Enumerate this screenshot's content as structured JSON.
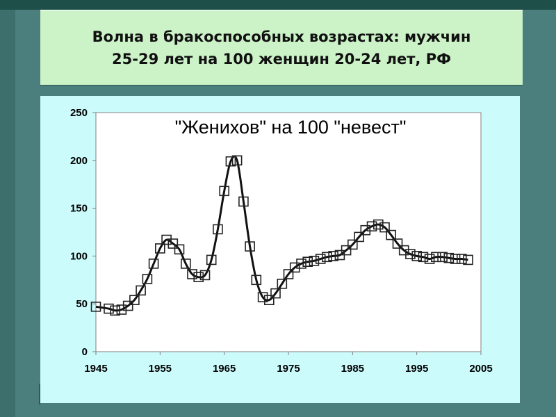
{
  "slide": {
    "title": "Волна в бракоспособных возрастах: мужчин\n25-29 лет на 100 женщин 20-24 лет, РФ"
  },
  "colors": {
    "background": "#4a7f7e",
    "title_box": "#ccf2c7",
    "chart_panel": "#ccfbfc",
    "plot_area": "#ffffff",
    "line": "#111111"
  },
  "chart_data": {
    "type": "line",
    "title": "\"Женихов\" на 100 \"невест\"",
    "xlabel": "",
    "ylabel": "",
    "xlim": [
      1945,
      2005
    ],
    "ylim": [
      0,
      250
    ],
    "x_ticks": [
      1945,
      1955,
      1965,
      1975,
      1985,
      1995,
      2005
    ],
    "y_ticks": [
      0,
      50,
      100,
      150,
      200,
      250
    ],
    "grid": false,
    "legend": "none",
    "marker": "square",
    "series": [
      {
        "x": [
          1945,
          1947,
          1948,
          1949,
          1950,
          1951,
          1952,
          1953,
          1954,
          1955,
          1956,
          1957,
          1958,
          1959,
          1960,
          1961,
          1962,
          1963,
          1964,
          1965,
          1966,
          1967,
          1968,
          1969,
          1970,
          1971,
          1972,
          1973,
          1974,
          1975,
          1976,
          1977,
          1978,
          1979,
          1980,
          1981,
          1982,
          1983,
          1984,
          1985,
          1986,
          1987,
          1988,
          1989,
          1990,
          1991,
          1992,
          1993,
          1994,
          1995,
          1996,
          1997,
          1998,
          1999,
          2000,
          2001,
          2002,
          2003
        ],
        "values": [
          47,
          45,
          43,
          44,
          48,
          54,
          64,
          76,
          92,
          108,
          117,
          113,
          107,
          92,
          81,
          78,
          80,
          96,
          128,
          168,
          199,
          200,
          157,
          110,
          75,
          57,
          54,
          61,
          71,
          81,
          88,
          92,
          94,
          95,
          97,
          99,
          100,
          101,
          106,
          112,
          120,
          127,
          131,
          133,
          130,
          122,
          113,
          106,
          102,
          100,
          99,
          97,
          99,
          99,
          98,
          97,
          97,
          96
        ]
      }
    ]
  }
}
